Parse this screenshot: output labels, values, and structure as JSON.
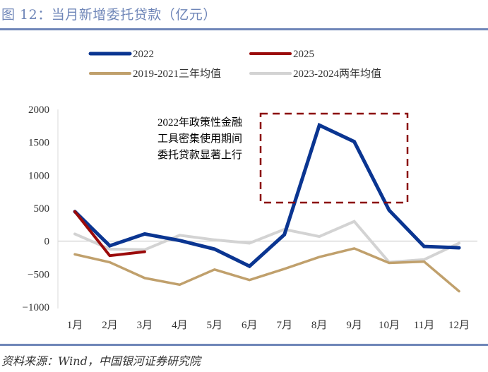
{
  "header": {
    "title": "图 12：当月新增委托贷款（亿元）"
  },
  "footer": {
    "source": "资料来源：Wind，中国银河证券研究院"
  },
  "chart_data": {
    "type": "line",
    "title": "图 12：当月新增委托贷款（亿元）",
    "xlabel": "",
    "ylabel": "",
    "categories": [
      "1月",
      "2月",
      "3月",
      "4月",
      "5月",
      "6月",
      "7月",
      "8月",
      "9月",
      "10月",
      "11月",
      "12月"
    ],
    "ylim": [
      -1000,
      2000
    ],
    "yticks": [
      -1000,
      -500,
      0,
      500,
      1000,
      1500,
      2000
    ],
    "ytick_labels": [
      "-1000",
      "-500",
      "0",
      "500",
      "1000",
      "1500",
      "2000"
    ],
    "grid": false,
    "legend_position": "top",
    "series": [
      {
        "name": "2022",
        "color": "#0a3591",
        "values": [
          450,
          -70,
          110,
          10,
          -120,
          -380,
          100,
          1760,
          1510,
          470,
          -80,
          -100
        ]
      },
      {
        "name": "2025",
        "color": "#9b0a0a",
        "values": [
          450,
          -220,
          -160,
          null,
          null,
          null,
          null,
          null,
          null,
          null,
          null,
          null
        ]
      },
      {
        "name": "2019-2021三年均值",
        "color": "#c0a06c",
        "values": [
          -200,
          -320,
          -560,
          -660,
          -430,
          -590,
          -420,
          -240,
          -110,
          -330,
          -310,
          -760
        ]
      },
      {
        "name": "2023-2024两年均值",
        "color": "#d3d3d3",
        "values": [
          110,
          -120,
          -130,
          90,
          20,
          -30,
          180,
          70,
          300,
          -320,
          -280,
          -30
        ]
      }
    ],
    "annotations": [
      {
        "text_lines": [
          "2022年政策性金融",
          "工具密集使用期间",
          "委托贷款显著上行"
        ],
        "highlight_range": {
          "x_from": "7月",
          "x_to": "10月",
          "y_from": 580,
          "y_to": 1950
        },
        "highlight_color": "#8b0000"
      }
    ]
  }
}
